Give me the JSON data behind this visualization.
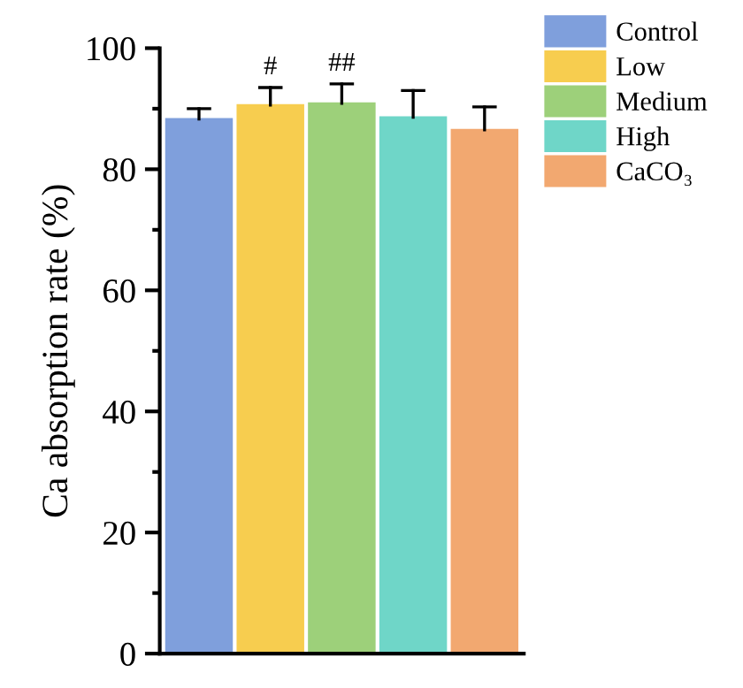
{
  "chart_data": {
    "type": "bar",
    "ylabel": "Ca absorption rate (%)",
    "categories": [
      null,
      null,
      null,
      null,
      null
    ],
    "series": [
      {
        "name": "Control",
        "color": "#7f9fdc",
        "values": [
          88.3,
          null,
          null,
          null,
          null
        ],
        "errors": [
          [
            88.3,
            90.0
          ],
          null,
          null,
          null,
          null
        ]
      },
      {
        "name": "Low",
        "color": "#f7cd4f",
        "values": [
          null,
          90.6,
          null,
          null,
          null
        ],
        "errors": [
          null,
          [
            90.6,
            93.5
          ],
          null,
          null,
          null
        ]
      },
      {
        "name": "Medium",
        "color": "#9dd07a",
        "values": [
          null,
          null,
          90.9,
          null,
          null
        ],
        "errors": [
          null,
          null,
          [
            90.9,
            94.1
          ],
          null,
          null
        ]
      },
      {
        "name": "High",
        "color": "#6fd6c8",
        "values": [
          null,
          null,
          null,
          88.6,
          null
        ],
        "errors": [
          null,
          null,
          null,
          [
            88.6,
            93.0
          ],
          null
        ]
      },
      {
        "name": "CaCO₃",
        "color": "#f2a870",
        "values": [
          null,
          null,
          null,
          null,
          86.5
        ],
        "errors": [
          null,
          null,
          null,
          null,
          [
            86.5,
            90.3
          ]
        ]
      }
    ],
    "ylim": [
      0,
      100
    ],
    "yticks": [
      0,
      20,
      40,
      60,
      80,
      100
    ],
    "legend": "right",
    "grid": false,
    "annotations": [
      "#",
      "##"
    ]
  }
}
